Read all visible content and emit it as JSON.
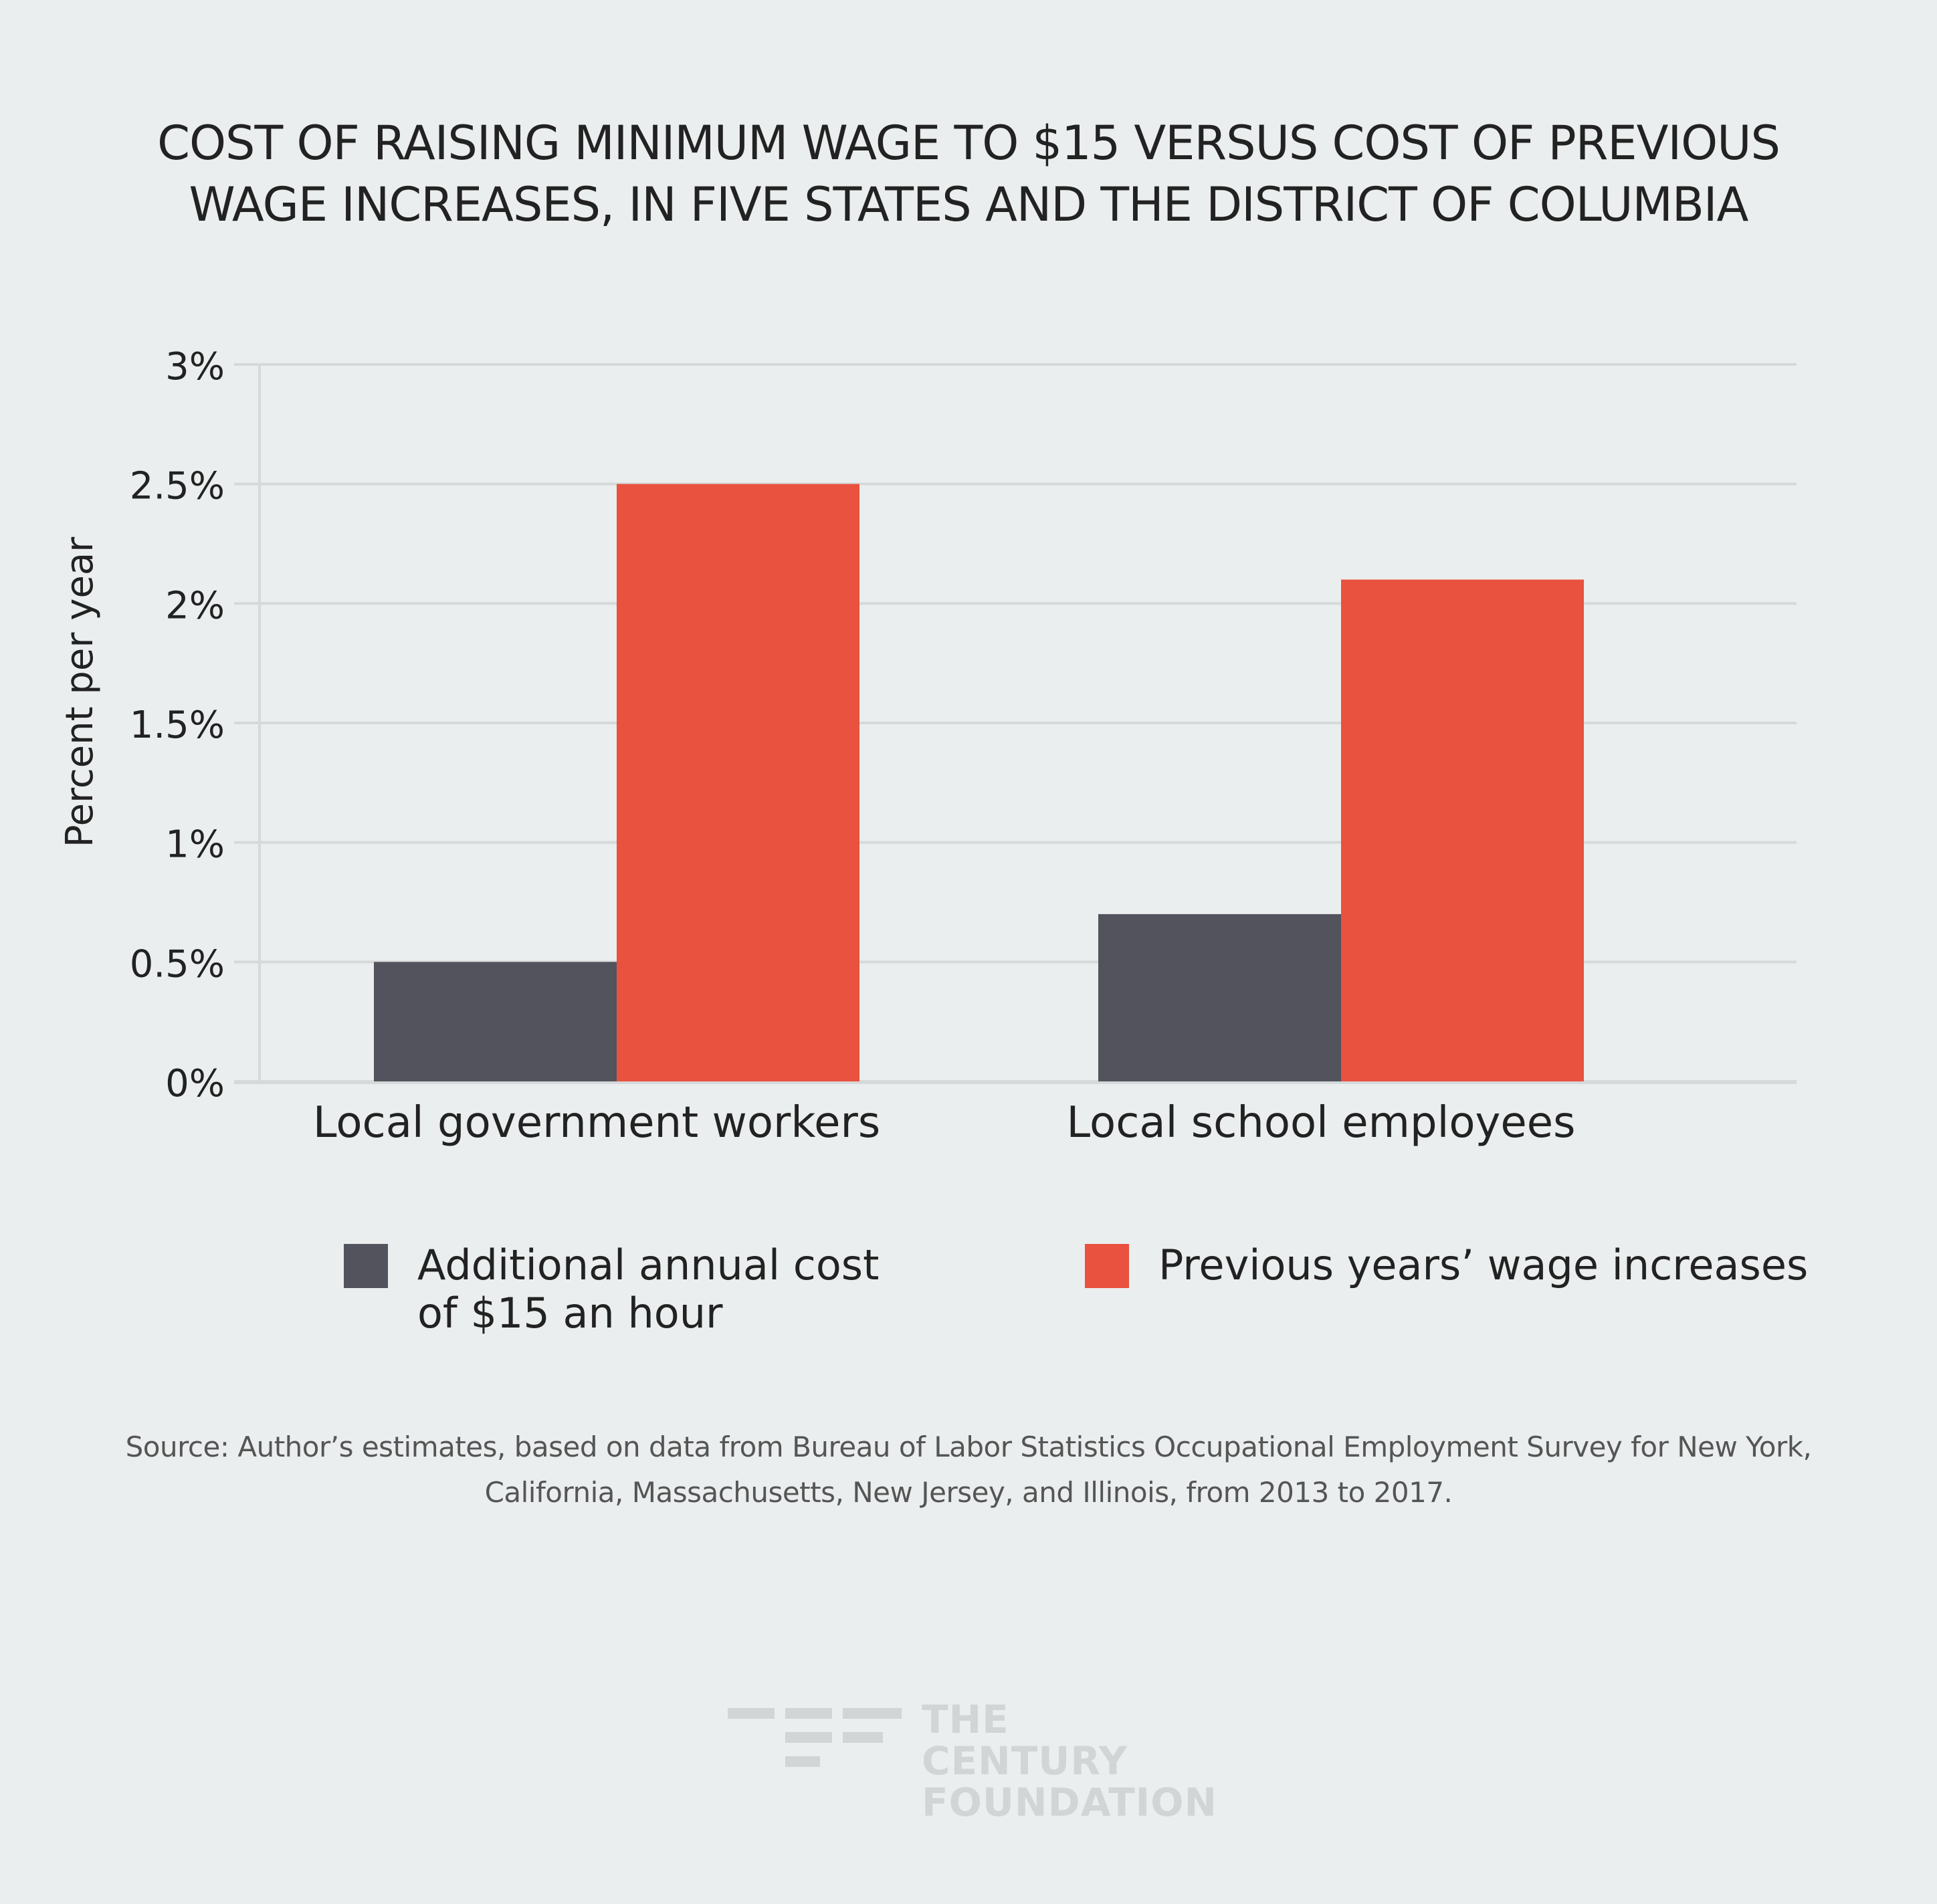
{
  "title": {
    "line1": "COST OF RAISING MINIMUM WAGE TO $15 VERSUS COST OF PREVIOUS",
    "line2": "WAGE INCREASES, IN FIVE STATES AND THE DISTRICT OF COLUMBIA"
  },
  "chart_data": {
    "type": "bar",
    "categories": [
      "Local government workers",
      "Local school employees"
    ],
    "series": [
      {
        "name": "Additional annual cost of $15 an hour",
        "values": [
          0.5,
          0.7
        ],
        "color": "#52535d"
      },
      {
        "name": "Previous years’ wage increases",
        "values": [
          2.5,
          2.1
        ],
        "color": "#e8523f"
      }
    ],
    "ylabel": "Percent per year",
    "xlabel": "",
    "ylim": [
      0,
      3
    ],
    "yticks": [
      0,
      0.5,
      1,
      1.5,
      2,
      2.5,
      3
    ],
    "ytick_labels": [
      "0%",
      "0.5%",
      "1%",
      "1.5%",
      "2%",
      "2.5%",
      "3%"
    ],
    "grid": true,
    "legend_position": "bottom"
  },
  "legend": {
    "item1": "Additional annual cost\nof $15 an hour",
    "item2": "Previous years’ wage increases"
  },
  "source": {
    "line1": "Source: Author’s estimates, based on data from Bureau of Labor Statistics Occupational Employment Survey for New York,",
    "line2": "California, Massachusetts, New Jersey, and Illinois, from 2013 to 2017."
  },
  "logo": {
    "line1": "THE CENTURY",
    "line2": "FOUNDATION"
  },
  "colors": {
    "background": "#ebeeee",
    "series1": "#52535d",
    "series2": "#e8523f",
    "grid": "#d6d9d9"
  }
}
